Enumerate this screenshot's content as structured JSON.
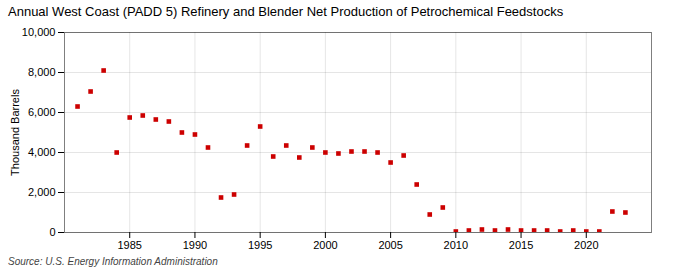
{
  "chart_data": {
    "type": "scatter",
    "title": "Annual West Coast (PADD 5) Refinery and Blender Net Production of Petrochemical Feedstocks",
    "ylabel": "Thousand Barrels",
    "annotations": [
      "Source: U.S. Energy Information Administration"
    ],
    "x": [
      1981,
      1982,
      1983,
      1984,
      1985,
      1986,
      1987,
      1988,
      1989,
      1990,
      1991,
      1992,
      1993,
      1994,
      1995,
      1996,
      1997,
      1998,
      1999,
      2000,
      2001,
      2002,
      2003,
      2004,
      2005,
      2006,
      2007,
      2008,
      2009,
      2010,
      2011,
      2012,
      2013,
      2014,
      2015,
      2016,
      2017,
      2018,
      2019,
      2020,
      2021,
      2022,
      2023
    ],
    "values": [
      6300,
      7050,
      8100,
      4000,
      5750,
      5850,
      5650,
      5550,
      5000,
      4900,
      4250,
      1750,
      1900,
      4350,
      5300,
      3800,
      4350,
      3750,
      4250,
      4000,
      3950,
      4050,
      4050,
      4000,
      3500,
      3850,
      2400,
      900,
      1250,
      50,
      100,
      150,
      100,
      150,
      100,
      100,
      100,
      50,
      100,
      50,
      50,
      1050,
      1000
    ],
    "color": "#cc0000",
    "marker": "square",
    "xlim": [
      1980,
      2025
    ],
    "xticks": [
      1985,
      1990,
      1995,
      2000,
      2005,
      2010,
      2015,
      2020
    ],
    "ylim": [
      0,
      10000
    ],
    "yticks": [
      0,
      {
        "value": 2000,
        "label": "2,000"
      },
      {
        "value": 4000,
        "label": "4,000"
      },
      {
        "value": 6000,
        "label": "6,000"
      },
      {
        "value": 8000,
        "label": "8,000"
      },
      {
        "value": 10000,
        "label": "10,000"
      }
    ],
    "grid": true
  }
}
